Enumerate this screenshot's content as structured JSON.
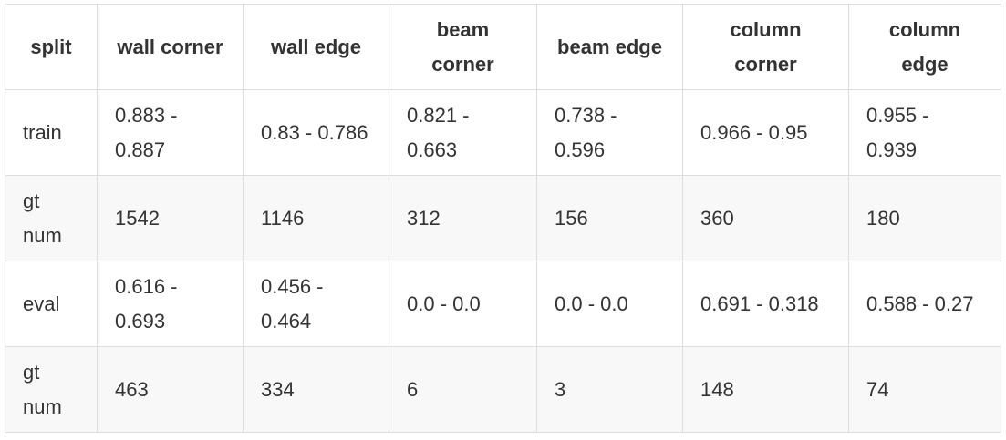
{
  "table": {
    "headers": [
      "split",
      "wall corner",
      "wall edge",
      "beam corner",
      "beam edge",
      "column corner",
      "column edge"
    ],
    "rows": [
      [
        "train",
        "0.883 - 0.887",
        "0.83 - 0.786",
        "0.821 - 0.663",
        "0.738 - 0.596",
        "0.966 - 0.95",
        "0.955 - 0.939"
      ],
      [
        "gt num",
        "1542",
        "1146",
        "312",
        "156",
        "360",
        "180"
      ],
      [
        "eval",
        "0.616 - 0.693",
        "0.456 - 0.464",
        "0.0 - 0.0",
        "0.0 - 0.0",
        "0.691 - 0.318",
        "0.588 - 0.27"
      ],
      [
        "gt num",
        "463",
        "334",
        "6",
        "3",
        "148",
        "74"
      ]
    ]
  }
}
